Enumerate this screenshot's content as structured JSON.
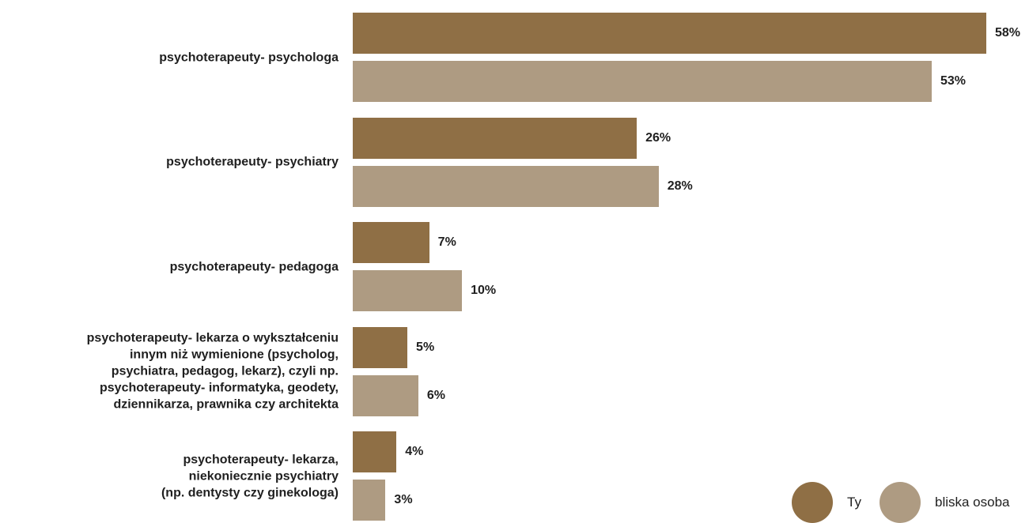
{
  "chart_data": {
    "type": "bar",
    "orientation": "horizontal",
    "categories": [
      "psychoterapeuty- psychologa",
      "psychoterapeuty- psychiatry",
      "psychoterapeuty- pedagoga",
      "psychoterapeuty- lekarza o wykształceniu innym niż wymienione (psycholog, psychiatra, pedagog, lekarz), czyli np. psychoterapeuty- informatyka, geodety, dziennikarza, prawnika czy architekta",
      "psychoterapeuty- lekarza, niekoniecznie psychiatry (np. dentysty czy ginekologa)"
    ],
    "category_lines": [
      [
        "psychoterapeuty- psychologa"
      ],
      [
        "psychoterapeuty- psychiatry"
      ],
      [
        "psychoterapeuty- pedagoga"
      ],
      [
        "psychoterapeuty- lekarza o wykształceniu",
        "innym niż wymienione (psycholog,",
        "psychiatra, pedagog, lekarz), czyli np.",
        "psychoterapeuty- informatyka, geodety,",
        "dziennikarza, prawnika czy architekta"
      ],
      [
        "psychoterapeuty- lekarza,",
        "niekoniecznie psychiatry",
        "(np. dentysty czy ginekologa)"
      ]
    ],
    "series": [
      {
        "name": "Ty",
        "color": "#8f6f45",
        "values": [
          58,
          26,
          7,
          5,
          4
        ],
        "labels": [
          "58%",
          "26%",
          "7%",
          "5%",
          "4%"
        ]
      },
      {
        "name": "bliska osoba",
        "color": "#ae9b82",
        "values": [
          53,
          28,
          10,
          6,
          3
        ],
        "labels": [
          "53%",
          "28%",
          "10%",
          "6%",
          "3%"
        ]
      }
    ],
    "xlim": [
      0,
      58
    ],
    "grid": false,
    "legend_position": "bottom-right"
  }
}
